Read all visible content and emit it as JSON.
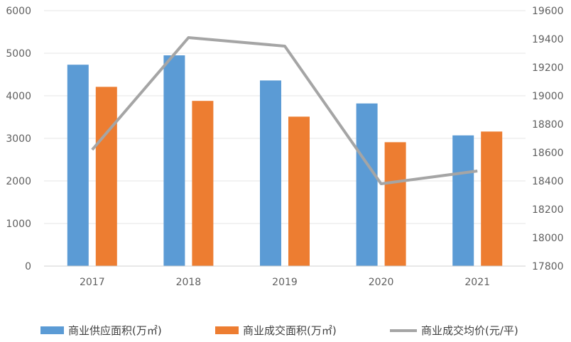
{
  "chart_data": {
    "type": "bar",
    "categories": [
      "2017",
      "2018",
      "2019",
      "2020",
      "2021"
    ],
    "series": [
      {
        "name": "商业供应面积(万㎡)",
        "kind": "bar",
        "axis": "left",
        "color": "#5B9BD5",
        "values": [
          4730,
          4950,
          4360,
          3820,
          3070
        ]
      },
      {
        "name": "商业成交面积(万㎡)",
        "kind": "bar",
        "axis": "left",
        "color": "#ED7D31",
        "values": [
          4210,
          3880,
          3510,
          2910,
          3160
        ]
      },
      {
        "name": "商业成交均价(元/平)",
        "kind": "line",
        "axis": "right",
        "color": "#A5A5A5",
        "values": [
          18620,
          19410,
          19350,
          18380,
          18470
        ]
      }
    ],
    "y_left": {
      "min": 0,
      "max": 6000,
      "ticks": [
        0,
        1000,
        2000,
        3000,
        4000,
        5000,
        6000
      ]
    },
    "y_right": {
      "min": 17800,
      "max": 19600,
      "ticks": [
        17800,
        18000,
        18200,
        18400,
        18600,
        18800,
        19000,
        19200,
        19400,
        19600
      ]
    },
    "grid": true,
    "legend": "bottom"
  }
}
